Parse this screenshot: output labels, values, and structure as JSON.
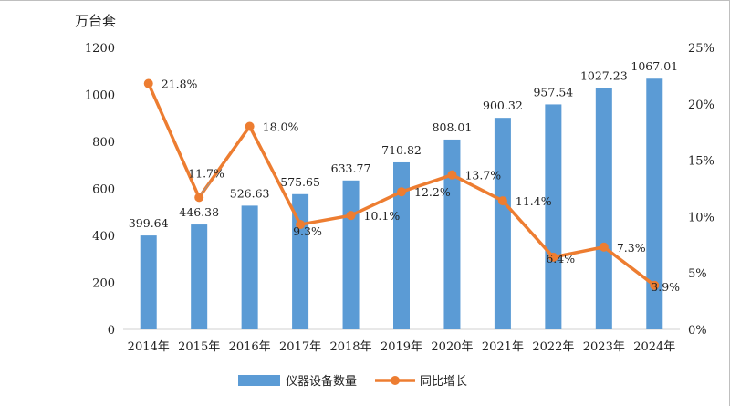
{
  "chart_data": {
    "type": "bar+line",
    "unit_label": "万台套",
    "categories": [
      "2014年",
      "2015年",
      "2016年",
      "2017年",
      "2018年",
      "2019年",
      "2020年",
      "2021年",
      "2022年",
      "2023年",
      "2024年"
    ],
    "bar_series": {
      "name": "仪器设备数量",
      "color": "#5b9bd5",
      "values": [
        399.64,
        446.38,
        526.63,
        575.65,
        633.77,
        710.82,
        808.01,
        900.32,
        957.54,
        1027.23,
        1067.01
      ],
      "labels": [
        "399.64",
        "446.38",
        "526.63",
        "575.65",
        "633.77",
        "710.82",
        "808.01",
        "900.32",
        "957.54",
        "1027.23",
        "1067.01"
      ]
    },
    "line_series": {
      "name": "同比增长",
      "color": "#ed7d31",
      "values": [
        21.8,
        11.7,
        18.0,
        9.3,
        10.1,
        12.2,
        13.7,
        11.4,
        6.4,
        7.3,
        3.9
      ],
      "labels": [
        "21.8%",
        "11.7%",
        "18.0%",
        "9.3%",
        "10.1%",
        "12.2%",
        "13.7%",
        "11.4%",
        "6.4%",
        "7.3%",
        "3.9%"
      ]
    },
    "y_left": {
      "min": 0,
      "max": 1200,
      "ticks": [
        "0",
        "200",
        "400",
        "600",
        "800",
        "1000",
        "1200"
      ]
    },
    "y_right": {
      "min": 0,
      "max": 25,
      "ticks": [
        "0%",
        "5%",
        "10%",
        "15%",
        "20%",
        "25%"
      ]
    },
    "grid": false,
    "legend_position": "bottom"
  }
}
